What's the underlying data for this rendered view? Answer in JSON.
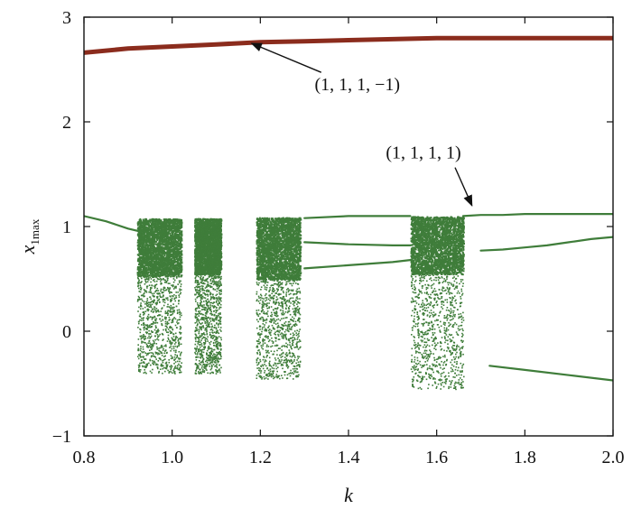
{
  "chart_data": {
    "type": "scatter",
    "title": "",
    "xlabel": "k",
    "ylabel": "x",
    "ylabel_subscript": "1max",
    "xlim": [
      0.8,
      2.0
    ],
    "ylim": [
      -1,
      3
    ],
    "xticks": [
      "0.8",
      "1.0",
      "1.2",
      "1.4",
      "1.6",
      "1.8",
      "2.0"
    ],
    "yticks": [
      "−1",
      "0",
      "1",
      "2",
      "3"
    ],
    "grid": false,
    "colors": {
      "upper": "#8b2c1d",
      "lower": "#3f7d3a"
    },
    "series": [
      {
        "branch": "upper",
        "style": "line",
        "x": [
          0.8,
          0.9,
          1.0,
          1.1,
          1.2,
          1.3,
          1.4,
          1.5,
          1.6,
          1.7,
          1.8,
          1.9,
          2.0
        ],
        "y": [
          2.66,
          2.7,
          2.72,
          2.74,
          2.76,
          2.77,
          2.78,
          2.79,
          2.8,
          2.8,
          2.8,
          2.8,
          2.8
        ]
      },
      {
        "branch": "lower",
        "style": "line",
        "x": [
          0.8,
          0.85,
          0.9,
          0.93
        ],
        "y": [
          1.1,
          1.05,
          0.98,
          0.95
        ]
      },
      {
        "branch": "lower",
        "style": "line",
        "x": [
          1.3,
          1.4,
          1.5,
          1.54
        ],
        "y": [
          1.08,
          1.1,
          1.1,
          1.1
        ]
      },
      {
        "branch": "lower",
        "style": "line",
        "x": [
          1.3,
          1.4,
          1.5,
          1.54
        ],
        "y": [
          0.85,
          0.83,
          0.82,
          0.82
        ]
      },
      {
        "branch": "lower",
        "style": "line",
        "x": [
          1.3,
          1.4,
          1.5,
          1.54
        ],
        "y": [
          0.6,
          0.63,
          0.66,
          0.68
        ]
      },
      {
        "branch": "lower",
        "style": "line",
        "x": [
          1.66,
          1.7,
          1.75,
          1.8,
          1.9,
          2.0
        ],
        "y": [
          1.1,
          1.11,
          1.11,
          1.12,
          1.12,
          1.12
        ]
      },
      {
        "branch": "lower",
        "style": "line",
        "x": [
          1.7,
          1.75,
          1.8,
          1.85,
          1.9,
          1.95,
          2.0
        ],
        "y": [
          0.77,
          0.78,
          0.8,
          0.82,
          0.85,
          0.88,
          0.9
        ]
      },
      {
        "branch": "lower",
        "style": "line",
        "x": [
          1.72,
          1.8,
          1.9,
          2.0
        ],
        "y": [
          -0.33,
          -0.37,
          -0.42,
          -0.47
        ]
      }
    ],
    "chaotic_regions": [
      {
        "x_range": [
          0.92,
          1.02
        ],
        "dense": [
          0.53,
          1.08
        ],
        "sparse": [
          -0.4,
          0.53
        ],
        "gaps": [
          [
            1.025,
            1.045
          ]
        ]
      },
      {
        "x_range": [
          1.05,
          1.11
        ],
        "dense": [
          0.55,
          1.08
        ],
        "sparse": [
          -0.4,
          0.55
        ],
        "gaps": []
      },
      {
        "x_range": [
          1.19,
          1.29
        ],
        "dense": [
          0.5,
          1.09
        ],
        "sparse": [
          -0.45,
          0.5
        ],
        "gaps": []
      },
      {
        "x_range": [
          1.54,
          1.66
        ],
        "dense": [
          0.55,
          1.1
        ],
        "sparse": [
          -0.55,
          0.55
        ],
        "gaps": []
      }
    ],
    "annotations": [
      {
        "text": "(1, 1, 1, −1)",
        "label_x": 1.42,
        "label_y": 2.3,
        "arrow_to_x": 1.18,
        "arrow_to_y": 2.75
      },
      {
        "text": "(1, 1, 1, 1)",
        "label_x": 1.57,
        "label_y": 1.65,
        "arrow_to_x": 1.68,
        "arrow_to_y": 1.2
      }
    ]
  }
}
